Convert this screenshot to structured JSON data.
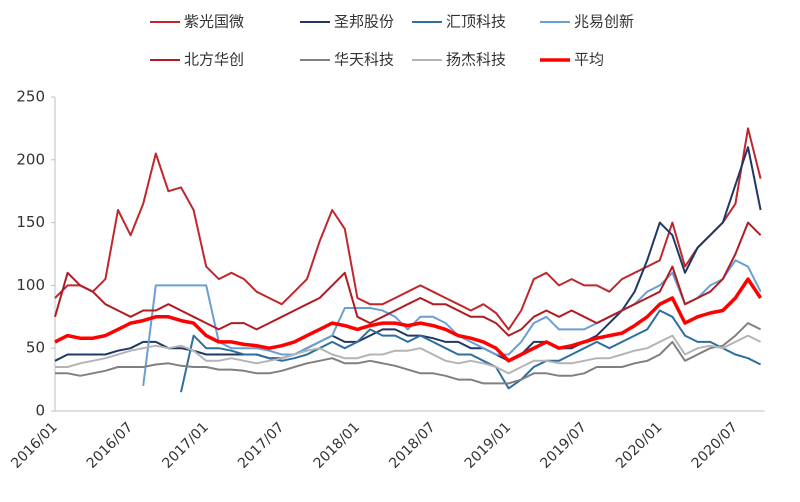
{
  "chart_data": {
    "type": "line",
    "categories": [
      "2016/01",
      null,
      null,
      null,
      null,
      null,
      "2016/07",
      null,
      null,
      null,
      null,
      null,
      "2017/01",
      null,
      null,
      null,
      null,
      null,
      "2017/07",
      null,
      null,
      null,
      null,
      null,
      "2018/01",
      null,
      null,
      null,
      null,
      null,
      "2018/07",
      null,
      null,
      null,
      null,
      null,
      "2019/01",
      null,
      null,
      null,
      null,
      null,
      "2019/07",
      null,
      null,
      null,
      null,
      null,
      "2020/01",
      null,
      null,
      null,
      null,
      null,
      "2020/07",
      null,
      null
    ],
    "ylim": [
      0,
      250
    ],
    "yticks": [
      0,
      50,
      100,
      150,
      200,
      250
    ],
    "series": [
      {
        "name": "紫光国微",
        "color": "#c0272d",
        "width": 2,
        "values": [
          90,
          100,
          100,
          95,
          105,
          160,
          140,
          165,
          205,
          175,
          178,
          160,
          115,
          105,
          110,
          105,
          95,
          90,
          85,
          95,
          105,
          135,
          160,
          145,
          90,
          85,
          85,
          90,
          95,
          100,
          95,
          90,
          85,
          80,
          85,
          78,
          65,
          80,
          105,
          110,
          100,
          105,
          100,
          100,
          95,
          105,
          110,
          115,
          120,
          150,
          115,
          130,
          140,
          150,
          165,
          225,
          185
        ]
      },
      {
        "name": "圣邦股份",
        "color": "#1f3864",
        "width": 2,
        "values": [
          40,
          45,
          45,
          45,
          45,
          48,
          50,
          55,
          55,
          50,
          50,
          48,
          45,
          45,
          45,
          45,
          45,
          42,
          42,
          45,
          50,
          55,
          60,
          55,
          55,
          60,
          65,
          65,
          60,
          60,
          58,
          55,
          55,
          50,
          50,
          45,
          40,
          45,
          55,
          55,
          50,
          50,
          55,
          60,
          70,
          80,
          95,
          120,
          150,
          140,
          110,
          130,
          140,
          150,
          180,
          210,
          160
        ]
      },
      {
        "name": "汇顶科技",
        "color": "#2e6f9e",
        "width": 2,
        "values": [
          null,
          null,
          null,
          null,
          null,
          null,
          null,
          null,
          null,
          null,
          15,
          60,
          50,
          50,
          48,
          45,
          45,
          42,
          40,
          42,
          45,
          50,
          55,
          50,
          55,
          65,
          60,
          60,
          55,
          60,
          55,
          50,
          45,
          45,
          40,
          35,
          18,
          25,
          35,
          40,
          40,
          45,
          50,
          55,
          50,
          55,
          60,
          65,
          80,
          75,
          60,
          55,
          55,
          50,
          45,
          42,
          37
        ]
      },
      {
        "name": "兆易创新",
        "color": "#6a9fd4",
        "width": 2,
        "values": [
          null,
          null,
          null,
          null,
          null,
          null,
          null,
          20,
          100,
          100,
          100,
          100,
          100,
          55,
          50,
          50,
          50,
          48,
          45,
          45,
          50,
          55,
          60,
          82,
          82,
          82,
          80,
          75,
          65,
          75,
          75,
          70,
          60,
          55,
          50,
          45,
          45,
          55,
          70,
          75,
          65,
          65,
          65,
          70,
          75,
          80,
          85,
          95,
          100,
          110,
          85,
          90,
          100,
          105,
          120,
          115,
          95
        ]
      },
      {
        "name": "北方华创",
        "color": "#b01c22",
        "width": 2,
        "values": [
          75,
          110,
          100,
          95,
          85,
          80,
          75,
          80,
          80,
          85,
          80,
          75,
          70,
          65,
          70,
          70,
          65,
          70,
          75,
          80,
          85,
          90,
          100,
          110,
          75,
          70,
          75,
          80,
          85,
          90,
          85,
          85,
          80,
          75,
          75,
          70,
          60,
          65,
          75,
          80,
          75,
          80,
          75,
          70,
          75,
          80,
          85,
          90,
          95,
          115,
          85,
          90,
          95,
          105,
          125,
          150,
          140
        ]
      },
      {
        "name": "华天科技",
        "color": "#808080",
        "width": 2,
        "values": [
          30,
          30,
          28,
          30,
          32,
          35,
          35,
          35,
          37,
          38,
          36,
          35,
          35,
          33,
          33,
          32,
          30,
          30,
          32,
          35,
          38,
          40,
          42,
          38,
          38,
          40,
          38,
          36,
          33,
          30,
          30,
          28,
          25,
          25,
          22,
          22,
          22,
          25,
          30,
          30,
          28,
          28,
          30,
          35,
          35,
          35,
          38,
          40,
          45,
          55,
          40,
          45,
          50,
          52,
          60,
          70,
          65
        ]
      },
      {
        "name": "扬杰科技",
        "color": "#b4b4b4",
        "width": 2,
        "values": [
          35,
          35,
          38,
          40,
          42,
          45,
          48,
          50,
          52,
          50,
          52,
          48,
          40,
          40,
          42,
          40,
          38,
          40,
          42,
          45,
          48,
          50,
          45,
          42,
          42,
          45,
          45,
          48,
          48,
          50,
          45,
          40,
          38,
          40,
          38,
          35,
          30,
          35,
          40,
          40,
          38,
          38,
          40,
          42,
          42,
          45,
          48,
          50,
          55,
          60,
          45,
          50,
          52,
          50,
          55,
          60,
          55
        ]
      },
      {
        "name": "平均",
        "color": "#ff0000",
        "width": 3.5,
        "values": [
          55,
          60,
          58,
          58,
          60,
          65,
          70,
          72,
          75,
          75,
          72,
          70,
          60,
          55,
          55,
          53,
          52,
          50,
          52,
          55,
          60,
          65,
          70,
          68,
          65,
          68,
          70,
          70,
          68,
          70,
          68,
          65,
          60,
          58,
          55,
          50,
          40,
          45,
          50,
          55,
          50,
          52,
          55,
          58,
          60,
          62,
          68,
          75,
          85,
          90,
          70,
          75,
          78,
          80,
          90,
          105,
          90
        ]
      }
    ]
  }
}
